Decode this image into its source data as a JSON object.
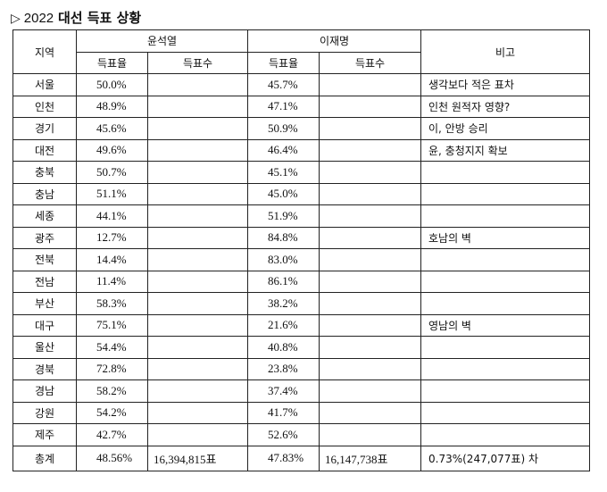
{
  "title": {
    "marker": "▷",
    "year": "2022",
    "text": "대선 득표 상황"
  },
  "header": {
    "region": "지역",
    "candidate1": "윤석열",
    "candidate2": "이재명",
    "note": "비고",
    "rate": "득표율",
    "count": "득표수"
  },
  "rows": [
    {
      "region": "서울",
      "yoon_rate": "50.0%",
      "yoon_count": "",
      "lee_rate": "45.7%",
      "lee_count": "",
      "note": "생각보다 적은 표차"
    },
    {
      "region": "인천",
      "yoon_rate": "48.9%",
      "yoon_count": "",
      "lee_rate": "47.1%",
      "lee_count": "",
      "note": "인천 원적자 영향?"
    },
    {
      "region": "경기",
      "yoon_rate": "45.6%",
      "yoon_count": "",
      "lee_rate": "50.9%",
      "lee_count": "",
      "note": "이, 안방 승리"
    },
    {
      "region": "대전",
      "yoon_rate": "49.6%",
      "yoon_count": "",
      "lee_rate": "46.4%",
      "lee_count": "",
      "note": "윤, 충청지지 확보"
    },
    {
      "region": "충북",
      "yoon_rate": "50.7%",
      "yoon_count": "",
      "lee_rate": "45.1%",
      "lee_count": "",
      "note": ""
    },
    {
      "region": "충남",
      "yoon_rate": "51.1%",
      "yoon_count": "",
      "lee_rate": "45.0%",
      "lee_count": "",
      "note": ""
    },
    {
      "region": "세종",
      "yoon_rate": "44.1%",
      "yoon_count": "",
      "lee_rate": "51.9%",
      "lee_count": "",
      "note": ""
    },
    {
      "region": "광주",
      "yoon_rate": "12.7%",
      "yoon_count": "",
      "lee_rate": "84.8%",
      "lee_count": "",
      "note": "호남의 벽"
    },
    {
      "region": "전북",
      "yoon_rate": "14.4%",
      "yoon_count": "",
      "lee_rate": "83.0%",
      "lee_count": "",
      "note": ""
    },
    {
      "region": "전남",
      "yoon_rate": "11.4%",
      "yoon_count": "",
      "lee_rate": "86.1%",
      "lee_count": "",
      "note": ""
    },
    {
      "region": "부산",
      "yoon_rate": "58.3%",
      "yoon_count": "",
      "lee_rate": "38.2%",
      "lee_count": "",
      "note": ""
    },
    {
      "region": "대구",
      "yoon_rate": "75.1%",
      "yoon_count": "",
      "lee_rate": "21.6%",
      "lee_count": "",
      "note": "영남의 벽"
    },
    {
      "region": "울산",
      "yoon_rate": "54.4%",
      "yoon_count": "",
      "lee_rate": "40.8%",
      "lee_count": "",
      "note": ""
    },
    {
      "region": "경북",
      "yoon_rate": "72.8%",
      "yoon_count": "",
      "lee_rate": "23.8%",
      "lee_count": "",
      "note": ""
    },
    {
      "region": "경남",
      "yoon_rate": "58.2%",
      "yoon_count": "",
      "lee_rate": "37.4%",
      "lee_count": "",
      "note": ""
    },
    {
      "region": "강원",
      "yoon_rate": "54.2%",
      "yoon_count": "",
      "lee_rate": "41.7%",
      "lee_count": "",
      "note": ""
    },
    {
      "region": "제주",
      "yoon_rate": "42.7%",
      "yoon_count": "",
      "lee_rate": "52.6%",
      "lee_count": "",
      "note": ""
    }
  ],
  "total": {
    "region": "총계",
    "yoon_rate": "48.56%",
    "yoon_count": "16,394,815표",
    "lee_rate": "47.83%",
    "lee_count": "16,147,738표",
    "note": "0.73%(247,077표) 차"
  }
}
